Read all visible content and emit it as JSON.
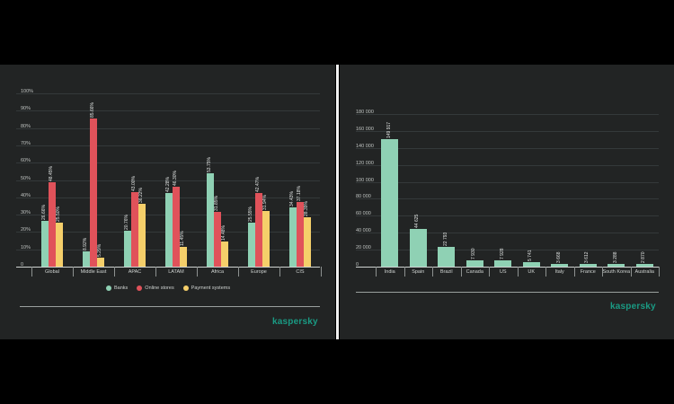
{
  "chart_data": [
    {
      "type": "bar",
      "title": "",
      "xlabel": "",
      "ylabel": "",
      "ylim": [
        0,
        100
      ],
      "yticks": [
        "0",
        "10%",
        "20%",
        "30%",
        "40%",
        "50%",
        "60%",
        "70%",
        "80%",
        "90%",
        "100%"
      ],
      "grid": true,
      "legend_position": "bottom",
      "categories": [
        "Global",
        "Middle East",
        "APAC",
        "LATAM",
        "Africa",
        "Europe",
        "CIS"
      ],
      "series": [
        {
          "name": "Banks",
          "color": "#8fd1b4",
          "values": [
            26.66,
            8.92,
            20.76,
            42.28,
            53.75,
            25.55,
            34.43
          ],
          "labels": [
            "26.66%",
            "8.92%",
            "20.76%",
            "42.28%",
            "53.75%",
            "25.55%",
            "34.43%"
          ]
        },
        {
          "name": "Online stores",
          "color": "#e0525a",
          "values": [
            48.45,
            85.66,
            43.0,
            46.3,
            31.85,
            42.47,
            37.18
          ],
          "labels": [
            "48.45%",
            "85.66%",
            "43.00%",
            "46.30%",
            "31.85%",
            "42.47%",
            "37.18%"
          ]
        },
        {
          "name": "Payment systems",
          "color": "#f5cf6a",
          "values": [
            25.5,
            5.29,
            36.22,
            11.45,
            14.48,
            31.94,
            28.39
          ],
          "labels": [
            "25.50%",
            "5.29%",
            "36.22%",
            "11.45%",
            "14.48%",
            "31.94%",
            "28.39%"
          ]
        }
      ]
    },
    {
      "type": "bar",
      "title": "",
      "xlabel": "",
      "ylabel": "",
      "ylim": [
        0,
        180000
      ],
      "yticks": [
        "0",
        "20 000",
        "40 000",
        "60 000",
        "80 000",
        "100 000",
        "120 000",
        "140 000",
        "160 000",
        "180 000"
      ],
      "grid": true,
      "categories": [
        "India",
        "Spain",
        "Brazil",
        "Canada",
        "US",
        "UK",
        "Italy",
        "France",
        "South Korea",
        "Australia"
      ],
      "series": [
        {
          "name": "Count",
          "color": "#8fd1b4",
          "values": [
            149917,
            44625,
            22793,
            7930,
            7928,
            5741,
            3668,
            3612,
            3288,
            2870
          ],
          "labels": [
            "149 917",
            "44 625",
            "22 793",
            "7 930",
            "7 928",
            "5 741",
            "3 668",
            "3 612",
            "3 288",
            "2 870"
          ]
        }
      ]
    }
  ],
  "branding": {
    "left_logo": "kaspersky",
    "right_logo": "kaspersky",
    "logo_color": "#1a9b84"
  },
  "colors": {
    "panel_bg": "#222424",
    "page_bg": "#000000",
    "banks": "#8fd1b4",
    "online_stores": "#e0525a",
    "payment_systems": "#f5cf6a"
  }
}
